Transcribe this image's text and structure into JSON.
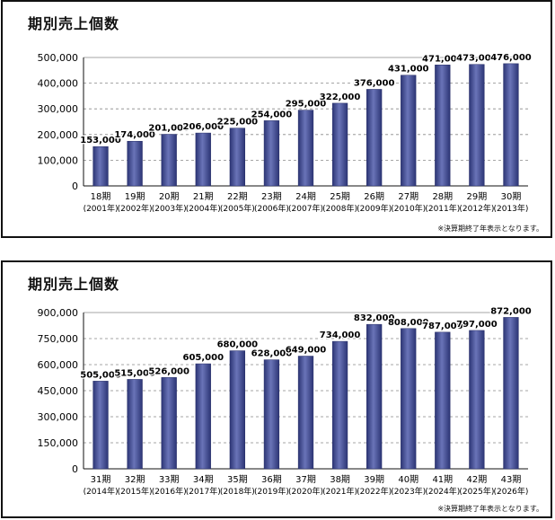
{
  "chart_data": [
    {
      "type": "bar",
      "title": "期別売上個数",
      "ylim": [
        0,
        500000
      ],
      "yticks": [
        "0",
        "100,000",
        "200,000",
        "300,000",
        "400,000",
        "500,000"
      ],
      "categories": [
        "18期",
        "19期",
        "20期",
        "21期",
        "22期",
        "23期",
        "24期",
        "25期",
        "26期",
        "27期",
        "28期",
        "29期",
        "30期"
      ],
      "years": [
        "(2001年)",
        "(2002年)",
        "(2003年)",
        "(2004年)",
        "(2005年)",
        "(2006年)",
        "(2007年)",
        "(2008年)",
        "(2009年)",
        "(2010年)",
        "(2011年)",
        "(2012年)",
        "(2013年)"
      ],
      "values": [
        153000,
        174000,
        201000,
        206000,
        225000,
        254000,
        295000,
        322000,
        376000,
        431000,
        471000,
        473000,
        476000
      ],
      "data_labels": [
        "153,000",
        "174,000",
        "201,000",
        "206,000",
        "225,000",
        "254,000",
        "295,000",
        "322,000",
        "376,000",
        "431,000",
        "471,000",
        "473,000",
        "476,000"
      ],
      "grid": true,
      "footnote": "※決算期終了年表示となります。",
      "bar_color": "#4b559a"
    },
    {
      "type": "bar",
      "title": "期別売上個数",
      "ylim": [
        0,
        900000
      ],
      "yticks": [
        "0",
        "150,000",
        "300,000",
        "450,000",
        "600,000",
        "750,000",
        "900,000"
      ],
      "categories": [
        "31期",
        "32期",
        "33期",
        "34期",
        "35期",
        "36期",
        "37期",
        "38期",
        "39期",
        "40期",
        "41期",
        "42期",
        "43期"
      ],
      "years": [
        "(2014年)",
        "(2015年)",
        "(2016年)",
        "(2017年)",
        "(2018年)",
        "(2019年)",
        "(2020年)",
        "(2021年)",
        "(2022年)",
        "(2023年)",
        "(2024年)",
        "(2025年)",
        "(2026年)"
      ],
      "values": [
        505000,
        515000,
        526000,
        605000,
        680000,
        628000,
        649000,
        734000,
        832000,
        808000,
        787000,
        797000,
        872000
      ],
      "data_labels": [
        "505,000",
        "515,000",
        "526,000",
        "605,000",
        "680,000",
        "628,000",
        "649,000",
        "734,000",
        "832,000",
        "808,000",
        "787,000",
        "797,000",
        "872,000"
      ],
      "grid": true,
      "footnote": "※決算期終了年表示となります。",
      "bar_color": "#4b559a"
    }
  ]
}
